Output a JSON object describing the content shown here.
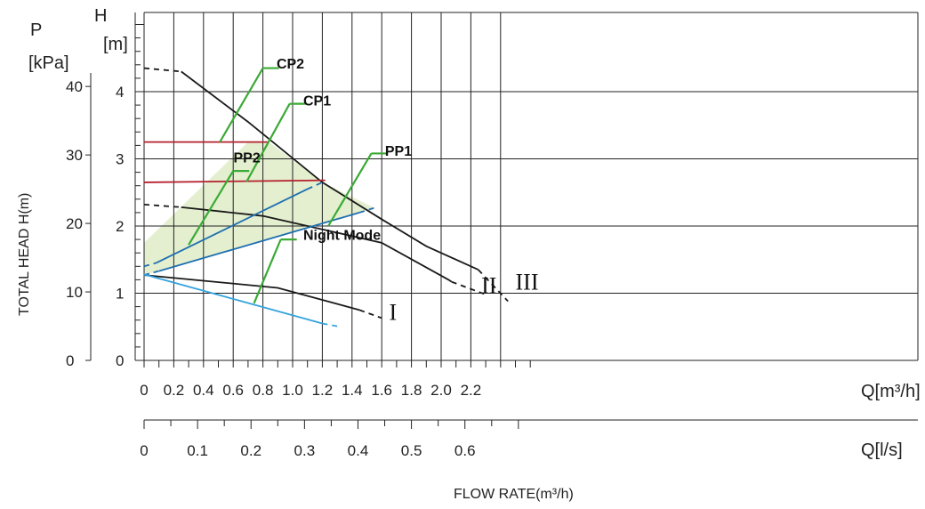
{
  "chart_data": {
    "type": "line",
    "title": "",
    "x_primary": {
      "label": "Q[m³/h]",
      "range": [
        0,
        2.6
      ],
      "ticks": [
        0,
        0.2,
        0.4,
        0.6,
        0.8,
        1.0,
        1.2,
        1.4,
        1.6,
        1.8,
        2.0,
        2.2
      ],
      "tick_labels": [
        "0",
        "0.2",
        "0.4",
        "0.6",
        "0.8",
        "1.0",
        "1.2",
        "1.4",
        "1.6",
        "1.8",
        "2.0",
        "2.2"
      ]
    },
    "x_secondary": {
      "label": "Q[l/s]",
      "ticks": [
        0,
        0.1,
        0.2,
        0.3,
        0.4,
        0.5,
        0.6
      ],
      "tick_labels": [
        "0",
        "0.1",
        "0.2",
        "0.3",
        "0.4",
        "0.5",
        "0.6"
      ]
    },
    "xlabel": "FLOW RATE(m³/h)",
    "y_head": {
      "label_top": "H",
      "label_unit": "[m]",
      "range": [
        0,
        5.2
      ],
      "ticks": [
        0,
        1,
        2,
        3,
        4
      ],
      "tick_labels": [
        "0",
        "1",
        "2",
        "3",
        "4"
      ]
    },
    "y_pressure": {
      "label_top": "P",
      "label_unit": "[kPa]",
      "ticks": [
        0,
        10,
        20,
        30,
        40
      ],
      "tick_labels": [
        "0",
        "10",
        "20",
        "30",
        "40"
      ]
    },
    "ylabel": "TOTAL HEAD H(m)",
    "grid": true,
    "series": [
      {
        "name": "III",
        "color": "#1a1a1a",
        "solid": [
          [
            0.25,
            4.3
          ],
          [
            0.7,
            3.55
          ],
          [
            1.2,
            2.65
          ],
          [
            1.6,
            2.1
          ],
          [
            1.9,
            1.7
          ],
          [
            2.25,
            1.35
          ]
        ],
        "dashed": [
          [
            0,
            4.35
          ],
          [
            0.25,
            4.3
          ]
        ]
      },
      {
        "name": "II",
        "color": "#1a1a1a",
        "solid": [
          [
            0.25,
            2.28
          ],
          [
            0.8,
            2.15
          ],
          [
            1.6,
            1.75
          ],
          [
            2.05,
            1.2
          ],
          [
            2.07,
            1.17
          ]
        ],
        "dashed": [
          [
            0,
            2.32
          ],
          [
            0.25,
            2.28
          ]
        ]
      },
      {
        "name": "II-tail",
        "color": "#1a1a1a",
        "solid": [],
        "dashed": [
          [
            2.07,
            1.17
          ],
          [
            2.3,
            0.98
          ]
        ]
      },
      {
        "name": "I",
        "color": "#1a1a1a",
        "solid": [
          [
            0,
            1.27
          ],
          [
            0.9,
            1.08
          ],
          [
            1.45,
            0.75
          ]
        ],
        "dashed": [
          [
            1.45,
            0.75
          ],
          [
            1.6,
            0.63
          ]
        ]
      },
      {
        "name": "III-tail",
        "color": "#1a1a1a",
        "solid": [],
        "dashed": [
          [
            2.25,
            1.35
          ],
          [
            2.45,
            0.88
          ]
        ]
      },
      {
        "name": "CP2",
        "color": "#b5202e",
        "solid": [
          [
            0,
            3.25
          ],
          [
            0.84,
            3.25
          ]
        ],
        "dashed": []
      },
      {
        "name": "CP1",
        "color": "#b5202e",
        "solid": [
          [
            0,
            2.65
          ],
          [
            1.22,
            2.68
          ]
        ],
        "dashed": []
      },
      {
        "name": "PP2",
        "color": "#1e6fb0",
        "solid": [
          [
            0.08,
            1.45
          ],
          [
            1.1,
            2.55
          ]
        ],
        "dashed": [
          [
            0,
            1.4
          ],
          [
            0.08,
            1.45
          ],
          [
            1.1,
            2.55
          ],
          [
            1.2,
            2.65
          ]
        ]
      },
      {
        "name": "PP1",
        "color": "#1e6fb0",
        "solid": [
          [
            0.1,
            1.33
          ],
          [
            1.45,
            2.2
          ]
        ],
        "dashed": [
          [
            0,
            1.27
          ],
          [
            0.1,
            1.33
          ],
          [
            1.45,
            2.2
          ],
          [
            1.55,
            2.27
          ]
        ]
      },
      {
        "name": "Night Mode",
        "color": "#34a3dd",
        "solid": [
          [
            0,
            1.28
          ],
          [
            1.2,
            0.55
          ]
        ],
        "dashed": [
          [
            1.2,
            0.55
          ],
          [
            1.32,
            0.5
          ]
        ]
      }
    ],
    "shaded_region": {
      "color": "#e3efcf",
      "polygon": [
        [
          0,
          1.75
        ],
        [
          0.7,
          3.25
        ],
        [
          0.84,
          3.25
        ],
        [
          1.2,
          2.65
        ],
        [
          1.55,
          2.27
        ],
        [
          0.1,
          1.33
        ],
        [
          0,
          1.27
        ]
      ]
    },
    "annotations": [
      {
        "text": "CP2",
        "label_at": [
          0.82,
          4.4
        ],
        "line_from": [
          0.51,
          3.25
        ],
        "line_to": [
          0.8,
          4.35
        ]
      },
      {
        "text": "CP1",
        "label_at": [
          1.0,
          3.85
        ],
        "line_from": [
          0.69,
          2.66
        ],
        "line_to": [
          0.98,
          3.82
        ]
      },
      {
        "text": "PP2",
        "label_at": [
          0.53,
          3.0
        ],
        "line_from": [
          0.3,
          1.72
        ],
        "line_to": [
          0.6,
          2.82
        ]
      },
      {
        "text": "PP1",
        "label_at": [
          1.55,
          3.1
        ],
        "line_from": [
          1.24,
          2.0
        ],
        "line_to": [
          1.53,
          3.08
        ]
      },
      {
        "text": "Night Mode",
        "label_at": [
          1.0,
          1.85
        ],
        "line_from": [
          0.74,
          0.85
        ],
        "line_to": [
          0.92,
          1.8
        ]
      }
    ],
    "curve_labels": [
      {
        "text": "I",
        "at": [
          1.65,
          0.6
        ]
      },
      {
        "text": "II",
        "at": [
          2.27,
          1.0
        ]
      },
      {
        "text": "III",
        "at": [
          2.5,
          1.05
        ]
      }
    ]
  }
}
